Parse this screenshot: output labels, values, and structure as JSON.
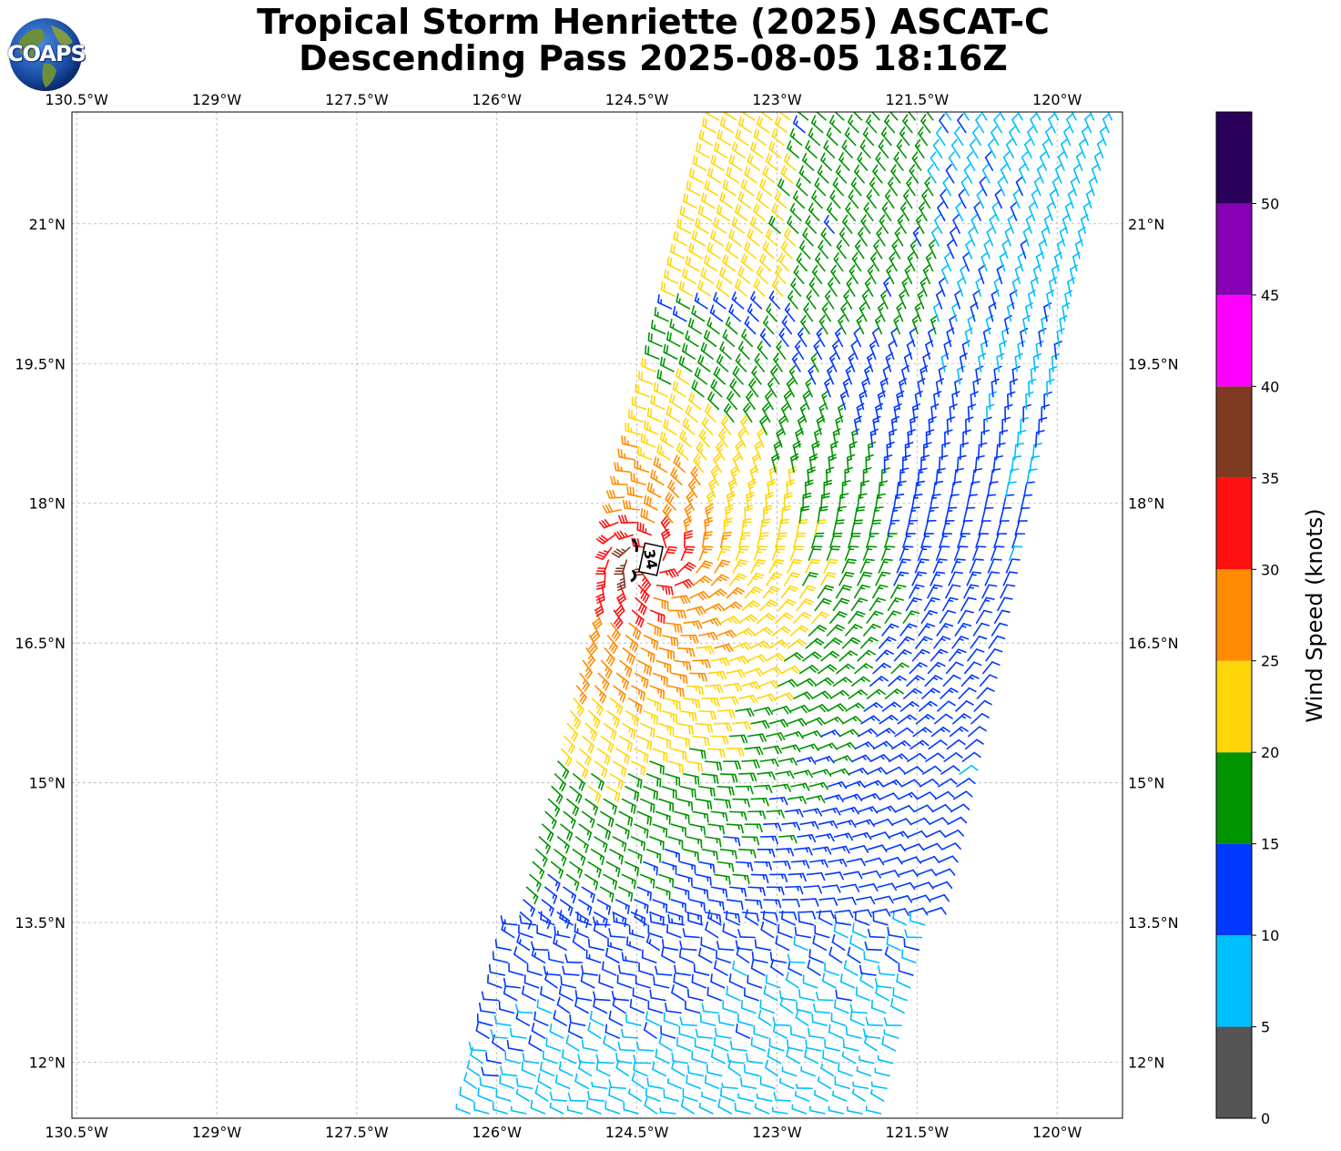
{
  "title": {
    "line1": "Tropical Storm Henriette (2025) ASCAT-C",
    "line2": "Descending Pass 2025-08-05 18:16Z"
  },
  "logo": {
    "text": "COAPS",
    "icon": "globe-icon"
  },
  "map": {
    "lon_range": [
      -130.55,
      -119.3
    ],
    "lat_range": [
      11.4,
      22.2
    ],
    "lon_tick_labels": [
      "130.5°W",
      "129°W",
      "127.5°W",
      "126°W",
      "124.5°W",
      "123°W",
      "121.5°W",
      "120°W"
    ],
    "lon_ticks": [
      -130.5,
      -129,
      -127.5,
      -126,
      -124.5,
      -123,
      -121.5,
      -120
    ],
    "lat_tick_labels": [
      "12°N",
      "13.5°N",
      "15°N",
      "16.5°N",
      "18°N",
      "19.5°N",
      "21°N"
    ],
    "lat_ticks": [
      12,
      13.5,
      15,
      16.5,
      18,
      19.5,
      21
    ],
    "gridlines": true,
    "storm_center": {
      "lon": -124.35,
      "lat": 17.4
    },
    "storm_marker_label": "34",
    "swath_edges": {
      "west_bottom": [
        -126.4,
        11.4
      ],
      "west_top": [
        -123.7,
        22.2
      ],
      "east_bottom": [
        -121.8,
        11.4
      ],
      "east_top": [
        -119.3,
        22.2
      ]
    },
    "feature": "ASCAT-C wind barbs, tropical cyclonic circulation"
  },
  "colorbar": {
    "label": "Wind Speed (knots)",
    "range": [
      0,
      55
    ],
    "ticks": [
      "0",
      "5",
      "10",
      "15",
      "20",
      "25",
      "30",
      "35",
      "40",
      "45",
      "50"
    ],
    "colors": [
      "#555555",
      "#00bfff",
      "#0038ff",
      "#009400",
      "#ffd60a",
      "#ff8c00",
      "#ff1010",
      "#7f3a22",
      "#ff00ff",
      "#8600b4",
      "#2a005a"
    ]
  }
}
